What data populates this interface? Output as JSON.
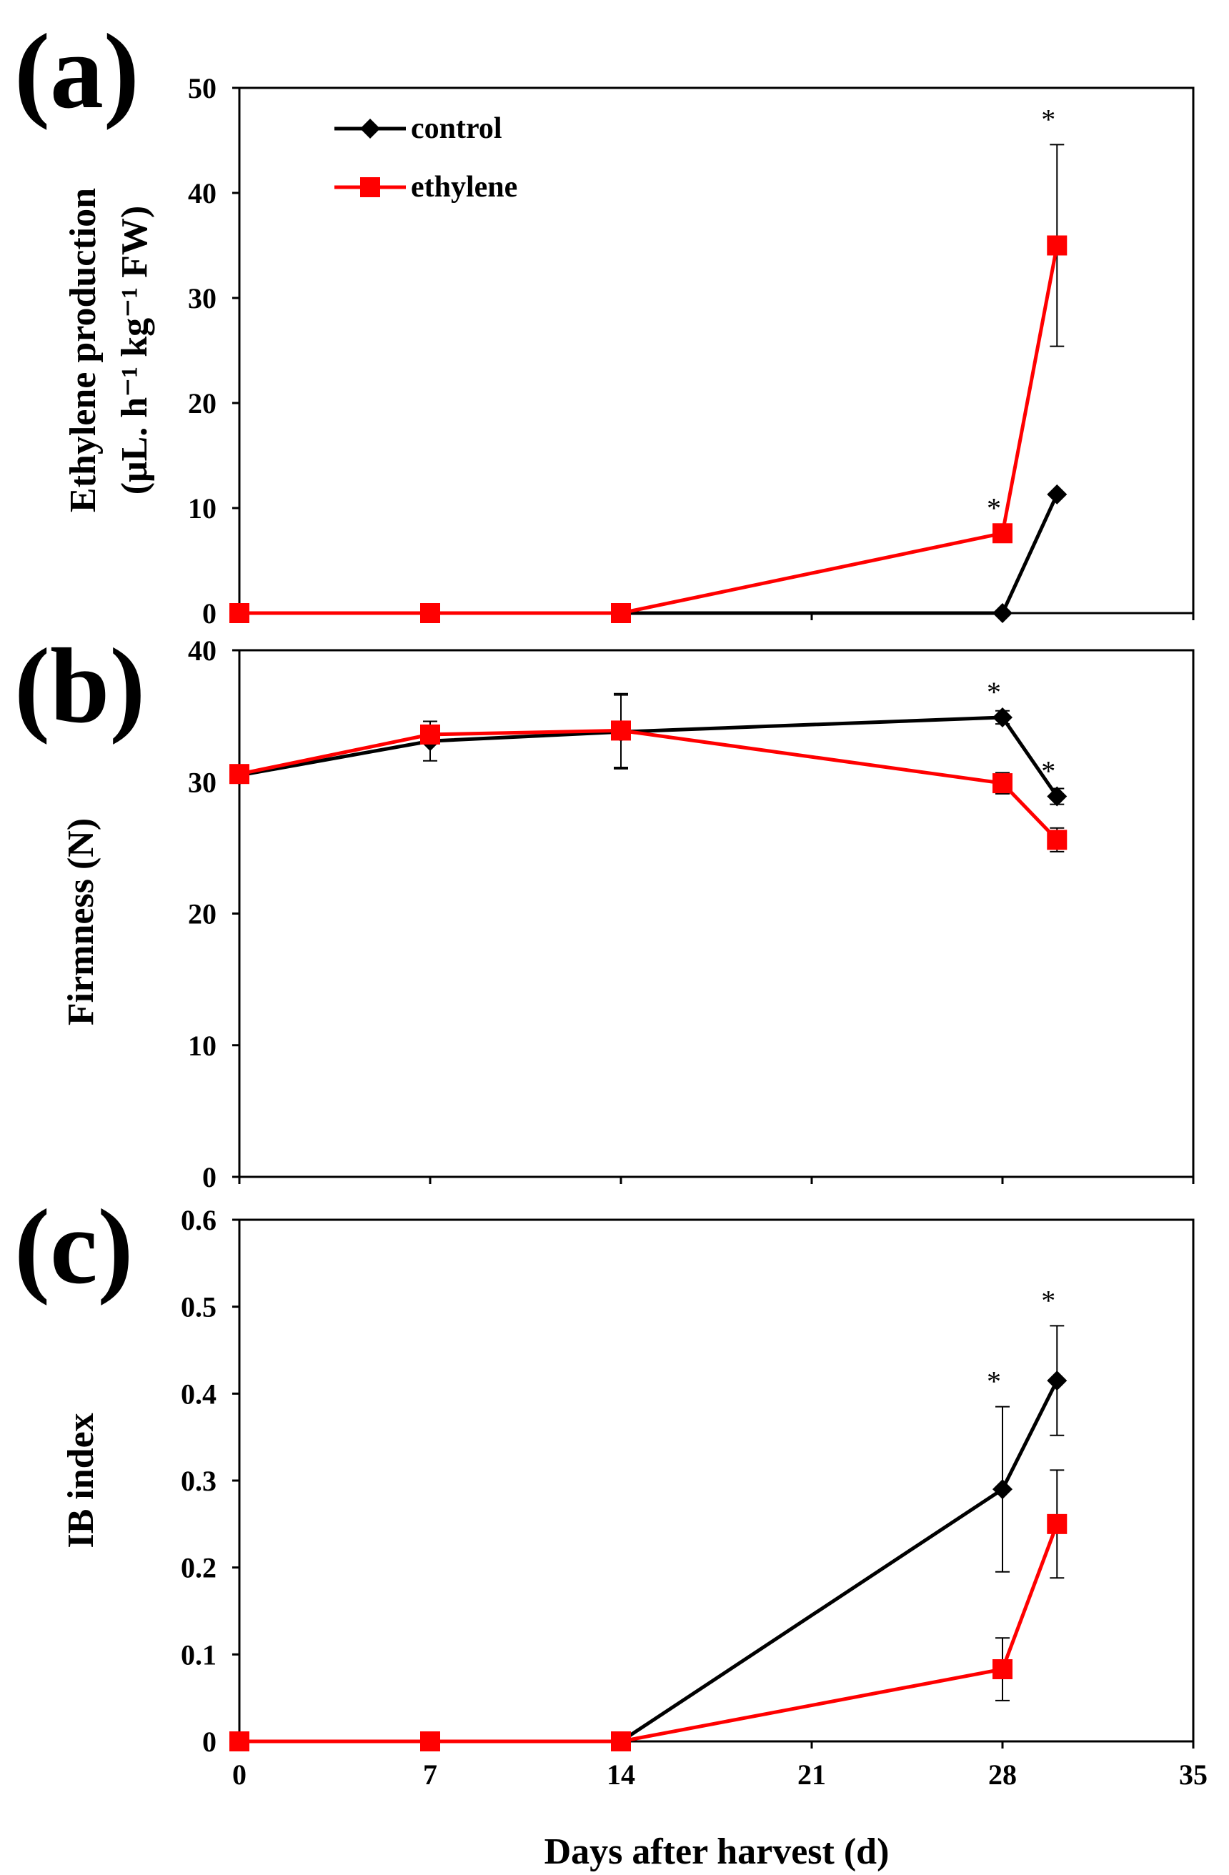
{
  "chart_data": [
    {
      "panel": "(a)",
      "type": "line",
      "ylabel_line1": "Ethylene production",
      "ylabel_line2": "(μL. h⁻¹ kg⁻¹ FW)",
      "ylim": [
        0,
        50
      ],
      "yticks": [
        0,
        10,
        20,
        30,
        40,
        50
      ],
      "xlim": [
        0,
        35
      ],
      "series": [
        {
          "name": "control",
          "color": "#000000",
          "marker": "diamond",
          "x": [
            0,
            7,
            14,
            28,
            30
          ],
          "y": [
            0,
            0,
            0,
            0,
            11.3
          ],
          "err": [
            0,
            0,
            0,
            0,
            0
          ]
        },
        {
          "name": "ethylene",
          "color": "#ff0000",
          "marker": "square",
          "x": [
            0,
            7,
            14,
            28,
            30
          ],
          "y": [
            0,
            0,
            0,
            7.6,
            35
          ],
          "err": [
            0,
            0,
            0,
            0,
            9.6
          ]
        }
      ],
      "stars": [
        {
          "x": 28,
          "y": 7.6,
          "label": "*"
        },
        {
          "x": 30,
          "y": 44.6,
          "label": "*"
        }
      ],
      "legend": [
        {
          "name": "control"
        },
        {
          "name": "ethylene"
        }
      ]
    },
    {
      "panel": "(b)",
      "type": "line",
      "ylabel": "Firmness (N)",
      "ylim": [
        0,
        40
      ],
      "yticks": [
        0,
        10,
        20,
        30,
        40
      ],
      "xlim": [
        0,
        35
      ],
      "series": [
        {
          "name": "control",
          "color": "#000000",
          "marker": "diamond",
          "x": [
            0,
            7,
            14,
            28,
            30
          ],
          "y": [
            30.5,
            33.1,
            33.8,
            34.9,
            28.9
          ],
          "err": [
            0.5,
            1.5,
            2.8,
            0.5,
            0.6
          ]
        },
        {
          "name": "ethylene",
          "color": "#ff0000",
          "marker": "square",
          "x": [
            0,
            7,
            14,
            28,
            30
          ],
          "y": [
            30.6,
            33.6,
            33.9,
            29.9,
            25.6
          ],
          "err": [
            0.5,
            0.6,
            2.8,
            0.8,
            0.9
          ]
        }
      ],
      "stars": [
        {
          "x": 28,
          "y": 34.9,
          "label": "*"
        },
        {
          "x": 30,
          "y": 28.9,
          "label": "*"
        }
      ]
    },
    {
      "panel": "(c)",
      "type": "line",
      "ylabel": "IB index",
      "xlabel": "Days after harvest (d)",
      "ylim": [
        0,
        0.6
      ],
      "yticks": [
        "0",
        "0.1",
        "0.2",
        "0.3",
        "0.4",
        "0.5",
        "0.6"
      ],
      "xlim": [
        0,
        35
      ],
      "xticks": [
        0,
        7,
        14,
        21,
        28,
        35
      ],
      "series": [
        {
          "name": "control",
          "color": "#000000",
          "marker": "diamond",
          "x": [
            0,
            7,
            14,
            28,
            30
          ],
          "y": [
            0,
            0,
            0,
            0.29,
            0.415
          ],
          "err": [
            0,
            0,
            0,
            0.095,
            0.063
          ]
        },
        {
          "name": "ethylene",
          "color": "#ff0000",
          "marker": "square",
          "x": [
            0,
            7,
            14,
            28,
            30
          ],
          "y": [
            0,
            0,
            0,
            0.083,
            0.25
          ],
          "err": [
            0,
            0,
            0,
            0.036,
            0.062
          ]
        }
      ],
      "stars": [
        {
          "x": 28,
          "y": 0.385,
          "label": "*"
        },
        {
          "x": 30,
          "y": 0.478,
          "label": "*"
        }
      ]
    }
  ]
}
